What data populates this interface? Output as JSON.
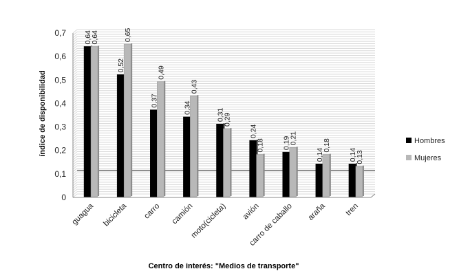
{
  "chart_data": {
    "type": "bar",
    "title": "",
    "xlabel": "Centro de interés: \"Medios de transporte\"",
    "ylabel": "índice de disponibilidad",
    "ylim": [
      0,
      0.7
    ],
    "yticks": [
      "0",
      "0,1",
      "0,2",
      "0,3",
      "0,4",
      "0,5",
      "0,6",
      "0,7"
    ],
    "categories": [
      "guagua",
      "bicicleta",
      "carro",
      "camión",
      "moto(cicleta)",
      "avión",
      "carro de caballo",
      "araña",
      "tren"
    ],
    "series": [
      {
        "name": "Hombres",
        "color": "#000000",
        "values": [
          0.64,
          0.52,
          0.37,
          0.34,
          0.31,
          0.24,
          0.19,
          0.14,
          0.14
        ],
        "labels": [
          "0,64",
          "0,52",
          "0,37",
          "0,34",
          "0,31",
          "0,24",
          "0,19",
          "0,14",
          "0,14"
        ]
      },
      {
        "name": "Mujeres",
        "color": "#b8b8b8",
        "values": [
          0.64,
          0.65,
          0.49,
          0.43,
          0.29,
          0.18,
          0.21,
          0.18,
          0.13
        ],
        "labels": [
          "0,64",
          "0,65",
          "0,49",
          "0,43",
          "0,29",
          "0,18",
          "0,21",
          "0,18",
          "0,13"
        ]
      }
    ],
    "grid": true,
    "legend": "right"
  }
}
